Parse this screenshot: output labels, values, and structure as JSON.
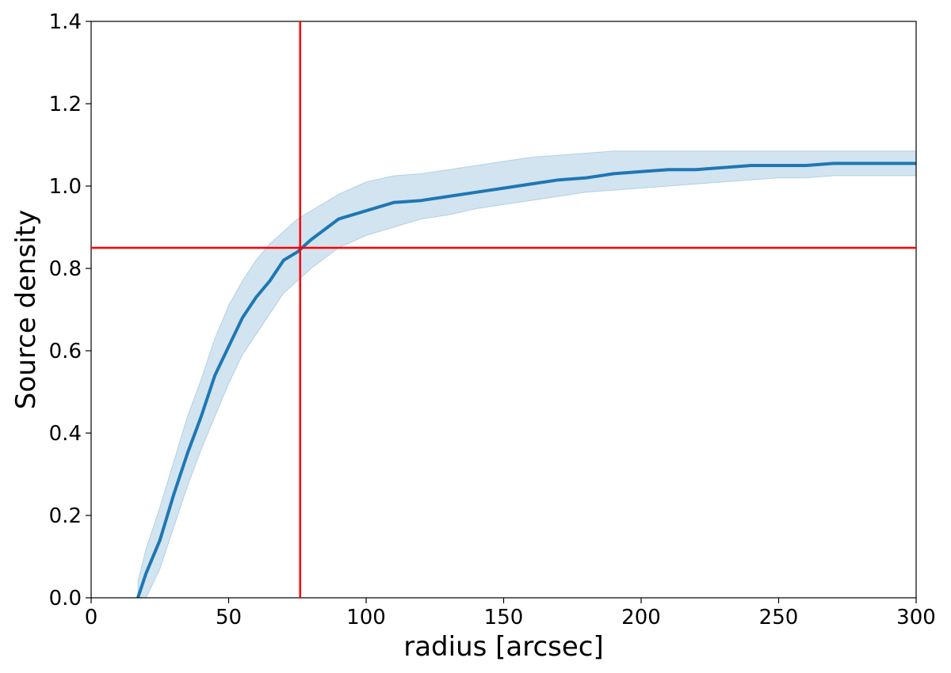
{
  "chart_data": {
    "type": "line",
    "xlabel": "radius [arcsec]",
    "ylabel": "Source density",
    "xlim": [
      0,
      300
    ],
    "ylim": [
      0.0,
      1.4
    ],
    "x_ticks": [
      "0",
      "50",
      "100",
      "150",
      "200",
      "250",
      "300"
    ],
    "y_ticks": [
      "0.0",
      "0.2",
      "0.4",
      "0.6",
      "0.8",
      "1.0",
      "1.2",
      "1.4"
    ],
    "grid": false,
    "legend": "none",
    "series": [
      {
        "style": "line with shaded uncertainty band",
        "color": "#1f77b4",
        "band_color": "#1f77b4",
        "x": [
          17,
          20,
          25,
          30,
          35,
          40,
          45,
          50,
          55,
          60,
          65,
          70,
          75,
          80,
          90,
          100,
          110,
          120,
          130,
          140,
          150,
          160,
          170,
          180,
          190,
          200,
          210,
          220,
          230,
          240,
          250,
          260,
          270,
          280,
          290,
          300
        ],
        "y": [
          0.0,
          0.06,
          0.14,
          0.25,
          0.35,
          0.44,
          0.54,
          0.61,
          0.68,
          0.73,
          0.77,
          0.82,
          0.84,
          0.87,
          0.92,
          0.94,
          0.96,
          0.965,
          0.975,
          0.985,
          0.995,
          1.005,
          1.015,
          1.02,
          1.03,
          1.035,
          1.04,
          1.04,
          1.045,
          1.05,
          1.05,
          1.05,
          1.055,
          1.055,
          1.055,
          1.055
        ],
        "y_lower": [
          -0.04,
          0.0,
          0.07,
          0.17,
          0.27,
          0.36,
          0.44,
          0.52,
          0.59,
          0.64,
          0.69,
          0.74,
          0.77,
          0.8,
          0.85,
          0.88,
          0.9,
          0.92,
          0.93,
          0.945,
          0.955,
          0.965,
          0.975,
          0.985,
          0.99,
          0.995,
          1.0,
          1.005,
          1.01,
          1.015,
          1.02,
          1.02,
          1.025,
          1.025,
          1.025,
          1.025
        ],
        "y_upper": [
          0.04,
          0.12,
          0.22,
          0.33,
          0.44,
          0.53,
          0.63,
          0.71,
          0.77,
          0.82,
          0.86,
          0.89,
          0.92,
          0.94,
          0.98,
          1.01,
          1.025,
          1.03,
          1.04,
          1.05,
          1.06,
          1.07,
          1.075,
          1.08,
          1.085,
          1.085,
          1.085,
          1.085,
          1.085,
          1.085,
          1.085,
          1.085,
          1.085,
          1.085,
          1.085,
          1.085
        ]
      }
    ],
    "reference_lines": [
      {
        "orientation": "vertical",
        "x": 76,
        "color": "#ff0000"
      },
      {
        "orientation": "horizontal",
        "y": 0.85,
        "color": "#ff0000"
      }
    ]
  }
}
